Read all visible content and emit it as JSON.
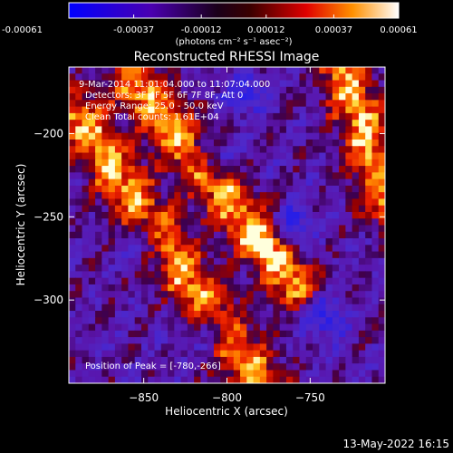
{
  "chart_data": {
    "type": "heatmap",
    "title": "Reconstructed RHESSI Image",
    "xlabel": "Heliocentric X (arcsec)",
    "ylabel": "Heliocentric Y (arcsec)",
    "xlim": [
      -895,
      -705
    ],
    "ylim": [
      -350,
      -160
    ],
    "x_ticks": [
      -850,
      -800,
      -750
    ],
    "y_ticks": [
      -200,
      -250,
      -300
    ],
    "colorbar": {
      "unit_label": "(photons cm⁻² s⁻¹ asec⁻²)",
      "range": [
        -0.00061,
        0.00061
      ],
      "tick_labels": [
        "-0.00061",
        "-0.00037",
        "-0.00012",
        "0.00012",
        "0.00037",
        "0.00061"
      ],
      "tick_values": [
        -0.00061,
        -0.00037,
        -0.00012,
        0.00012,
        0.00037,
        0.00061
      ]
    },
    "info_lines": [
      " 9-Mar-2014 11:01:04.000 to 11:07:04.000",
      "Detectors: 3F 4F 5F 6F 7F 8F, Att 0",
      "Energy Range: 25.0 - 50.0 keV",
      "Clean     Total counts: 1.61E+04"
    ],
    "peak_label": "Position of Peak = [-780,-266]",
    "peak_position": [
      -780,
      -266
    ],
    "grid": false,
    "bright_ridges": [
      {
        "x1": -890,
        "y1": -190,
        "x2": -780,
        "y2": -350
      },
      {
        "x1": -855,
        "y1": -170,
        "x2": -760,
        "y2": -290
      },
      {
        "x1": -730,
        "y1": -160,
        "x2": -705,
        "y2": -240
      }
    ],
    "blue_patches": [
      {
        "x": -760,
        "y": -255
      },
      {
        "x": -740,
        "y": -310
      },
      {
        "x": -808,
        "y": -215
      },
      {
        "x": -810,
        "y": -318
      },
      {
        "x": -850,
        "y": -265
      },
      {
        "x": -790,
        "y": -175
      }
    ]
  },
  "footer": {
    "timestamp": "13-May-2022 16:15"
  }
}
